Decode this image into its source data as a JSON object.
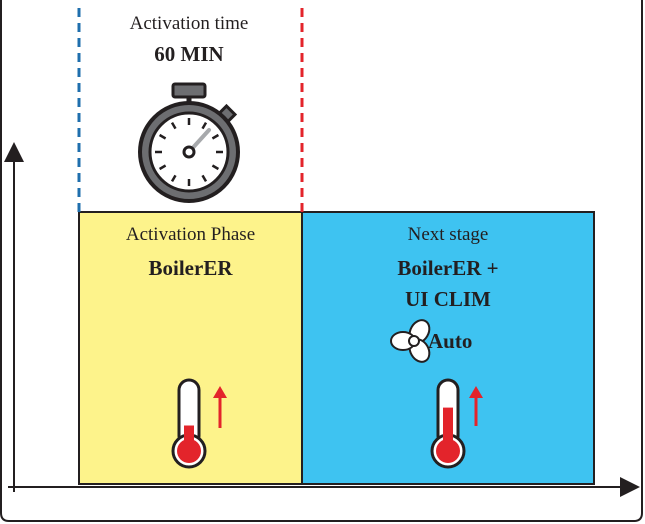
{
  "timer": {
    "caption": "Activation time",
    "duration": "60 MIN",
    "icon": "stopwatch-icon"
  },
  "activation_phase": {
    "caption": "Activation Phase",
    "title": "BoilerER",
    "color": "#fdf38b",
    "icon": "thermometer-rising-icon",
    "temperature_level": 0.33
  },
  "next_stage": {
    "caption": "Next stage",
    "title_line1": "BoilerER +",
    "title_line2": "UI CLIM",
    "fan_label": "Auto",
    "fan_icon": "fan-icon",
    "color": "#3ec3f1",
    "icon": "thermometer-rising-icon",
    "temperature_level": 0.62
  },
  "colors": {
    "start_marker": "#1f6fad",
    "end_marker": "#e3242b",
    "thermometer_fill": "#e3242b",
    "arrow": "#e3242b"
  }
}
